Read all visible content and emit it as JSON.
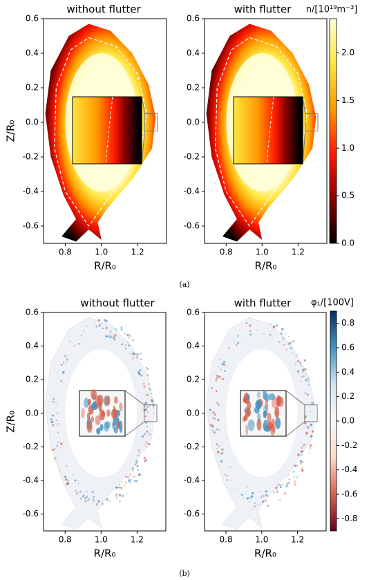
{
  "chart_data": [
    {
      "type": "heatmap",
      "title": "without flutter",
      "xlabel": "R/R₀",
      "ylabel": "Z/R₀",
      "xlim": [
        0.68,
        1.36
      ],
      "ylim": [
        -0.7,
        0.6
      ],
      "xticks": [
        0.8,
        {
          "value": 1,
          "label": "1.0"
        },
        1.2
      ],
      "yticks": [
        -0.6,
        -0.4,
        -0.2,
        {
          "value": 0,
          "label": "0.0"
        },
        0.2,
        0.4,
        0.6
      ]
    },
    {
      "type": "heatmap",
      "title": "with flutter",
      "xlabel": "R/R₀",
      "xlim": [
        0.68,
        1.36
      ],
      "ylim": [
        -0.7,
        0.6
      ],
      "xticks": [
        0.8,
        {
          "value": 1,
          "label": "1.0"
        },
        1.2
      ],
      "yticks": [
        -0.6,
        -0.4,
        -0.2,
        {
          "value": 0,
          "label": "0.0"
        },
        0.2,
        0.4,
        0.6
      ]
    },
    {
      "type": "heatmap",
      "title": "without flutter",
      "xlabel": "R/R₀",
      "ylabel": "Z/R₀",
      "xlim": [
        0.68,
        1.36
      ],
      "ylim": [
        -0.7,
        0.6
      ],
      "xticks": [
        0.8,
        {
          "value": 1,
          "label": "1.0"
        },
        1.2
      ],
      "yticks": [
        -0.6,
        -0.4,
        -0.2,
        {
          "value": 0,
          "label": "0.0"
        },
        0.2,
        0.4,
        0.6
      ]
    },
    {
      "type": "heatmap",
      "title": "with flutter",
      "xlabel": "R/R₀",
      "xlim": [
        0.68,
        1.36
      ],
      "ylim": [
        -0.7,
        0.6
      ],
      "xticks": [
        0.8,
        {
          "value": 1,
          "label": "1.0"
        },
        1.2
      ],
      "yticks": [
        -0.6,
        -0.4,
        -0.2,
        {
          "value": 0,
          "label": "0.0"
        },
        0.2,
        0.4,
        0.6
      ]
    }
  ],
  "colorbars": [
    {
      "label": "n/[10¹⁹m⁻³]",
      "lim": [
        0,
        2.36
      ],
      "colors": [
        "#000000",
        "#8a0000",
        "#ff1a00",
        "#ff9a00",
        "#ffe640",
        "#ffffd8"
      ],
      "ticks": [
        {
          "value": 0,
          "label": "0.0"
        },
        0.5,
        {
          "value": 1,
          "label": "1.0"
        },
        1.5,
        {
          "value": 2,
          "label": "2.0"
        }
      ]
    },
    {
      "label": "φ₁/[100V]",
      "lim": [
        -0.9,
        0.9
      ],
      "colors": [
        "#67001f",
        "#d6604d",
        "#fddbc7",
        "#f7f7f7",
        "#d1e5f0",
        "#4393c3",
        "#053061"
      ],
      "ticks": [
        -0.8,
        -0.6,
        -0.4,
        -0.2,
        {
          "value": 0,
          "label": "0.0"
        },
        0.2,
        0.4,
        0.6,
        0.8
      ]
    }
  ],
  "captions": [
    "(a)",
    "(b)"
  ]
}
